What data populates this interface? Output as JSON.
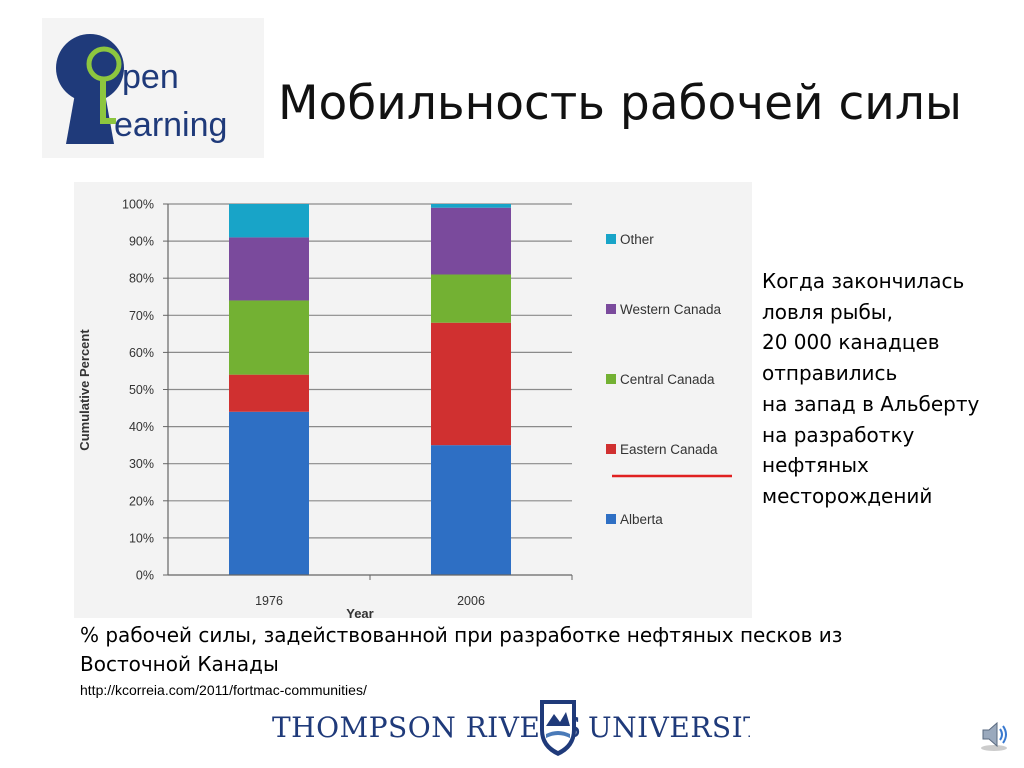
{
  "slide": {
    "title": "Мобильность рабочей силы",
    "logo": {
      "line1": "pen",
      "line2": "earning",
      "text": "Open Learning"
    },
    "side_text": [
      "Когда закончилась",
      "ловля рыбы,",
      "20 000 канадцев",
      "отправились",
      "на запад в Альберту",
      "на разработку",
      "нефтяных",
      "месторождений"
    ],
    "caption": "% рабочей силы, задействованной при разработке нефтяных песков из Восточной Канады",
    "source_url": "http://kcorreia.com/2011/fortmac-communities/",
    "footer_logo": {
      "left": "THOMPSON RIVERS",
      "right": "UNIVERSITY"
    },
    "speaker_icon": "speaker-icon"
  },
  "colors": {
    "Alberta": "#2e6fc4",
    "Eastern Canada": "#d03030",
    "Central Canada": "#73b133",
    "Western Canada": "#7a4a9c",
    "Other": "#18a4c8",
    "highlight_underline": "#e02020"
  },
  "chart_data": {
    "type": "bar",
    "stacked": true,
    "categories": [
      "1976",
      "2006"
    ],
    "series": [
      {
        "name": "Alberta",
        "values": [
          44,
          35
        ]
      },
      {
        "name": "Eastern Canada",
        "values": [
          10,
          33
        ]
      },
      {
        "name": "Central Canada",
        "values": [
          20,
          13
        ]
      },
      {
        "name": "Western Canada",
        "values": [
          17,
          18
        ]
      },
      {
        "name": "Other",
        "values": [
          9,
          1
        ]
      }
    ],
    "xlabel": "Year",
    "ylabel": "Cumulative Percent",
    "ylim": [
      0,
      100
    ],
    "yticks": [
      "0%",
      "10%",
      "20%",
      "30%",
      "40%",
      "50%",
      "60%",
      "70%",
      "80%",
      "90%",
      "100%"
    ],
    "grid": true,
    "legend_order": [
      "Other",
      "Western Canada",
      "Central Canada",
      "Eastern Canada",
      "Alberta"
    ],
    "legend_position": "right",
    "highlighted_legend_entry": "Eastern Canada"
  }
}
